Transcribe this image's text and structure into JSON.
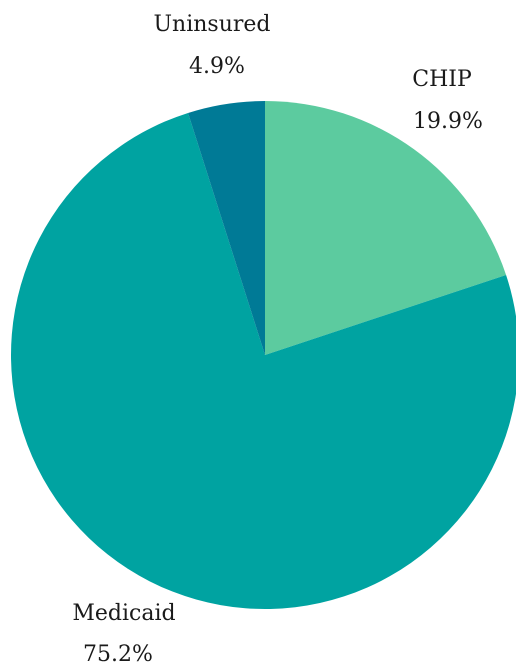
{
  "chart_data": {
    "type": "pie",
    "title": "",
    "slices": [
      {
        "name": "CHIP",
        "value": 19.9,
        "value_label": "19.9%",
        "color": "#5ccb9f"
      },
      {
        "name": "Medicaid",
        "value": 75.2,
        "value_label": "75.2%",
        "color": "#00a3a1"
      },
      {
        "name": "Uninsured",
        "value": 4.9,
        "value_label": "4.9%",
        "color": "#007a96"
      }
    ],
    "start_angle": "12 o'clock, clockwise",
    "legend": "none"
  }
}
